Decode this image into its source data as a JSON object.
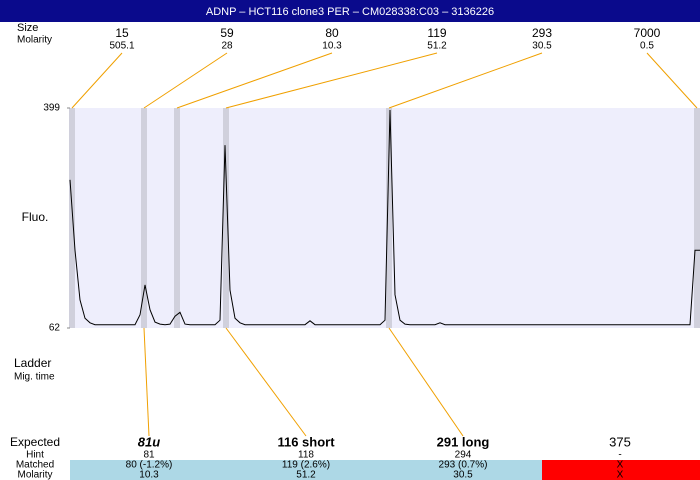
{
  "header": {
    "title": "ADNP – HCT116 clone3 PER – CM028338:C03 – 3136226"
  },
  "size_row": {
    "label": "Size",
    "molarity_label": "Molarity",
    "sizes": [
      15,
      59,
      80,
      119,
      293,
      7000
    ],
    "molarities": [
      505.1,
      28,
      10.3,
      51.2,
      30.5,
      0.5
    ]
  },
  "chart_data": {
    "type": "line",
    "y_label": "Fluo.",
    "color": "#000000",
    "ylim": [
      62,
      399
    ],
    "yticks": [
      62,
      399
    ],
    "values": [
      289,
      181,
      105,
      77,
      70,
      67,
      67,
      67,
      67,
      67,
      67,
      67,
      67,
      67,
      82,
      128,
      90,
      71,
      68,
      67,
      68,
      80,
      86,
      68,
      67,
      67,
      67,
      67,
      67,
      67,
      74,
      342,
      120,
      77,
      70,
      67,
      67,
      67,
      67,
      67,
      67,
      67,
      67,
      67,
      67,
      67,
      67,
      67,
      73,
      67,
      67,
      67,
      67,
      67,
      67,
      67,
      67,
      67,
      67,
      67,
      67,
      67,
      67,
      74,
      396,
      113,
      74,
      68,
      67,
      67,
      67,
      67,
      67,
      67,
      70,
      67,
      67,
      67,
      67,
      67,
      67,
      67,
      67,
      67,
      67,
      67,
      67,
      67,
      67,
      67,
      67,
      67,
      67,
      67,
      67,
      67,
      67,
      67,
      67,
      67,
      67,
      67,
      67,
      67,
      67,
      67,
      67,
      67,
      67,
      67,
      67,
      67,
      67,
      67,
      67,
      67,
      67,
      67,
      67,
      67,
      67,
      67,
      67,
      67,
      67,
      181,
      181
    ]
  },
  "lower_labels": {
    "ladder": "Ladder",
    "mig_time": "Mig. time"
  },
  "results": {
    "labels": [
      "Expected",
      "Hint",
      "Matched",
      "Molarity"
    ],
    "columns": [
      {
        "expected": "81u",
        "hint": 81,
        "matched": "80 (-1.2%)",
        "molarity": 10.3
      },
      {
        "expected": "116 short",
        "hint": 118,
        "matched": "119 (2.6%)",
        "molarity": 51.2
      },
      {
        "expected": "291 long",
        "hint": 294,
        "matched": "293 (0.7%)",
        "molarity": 30.5
      },
      {
        "expected": "375",
        "hint": "-",
        "matched": "X",
        "molarity": "X"
      }
    ]
  }
}
